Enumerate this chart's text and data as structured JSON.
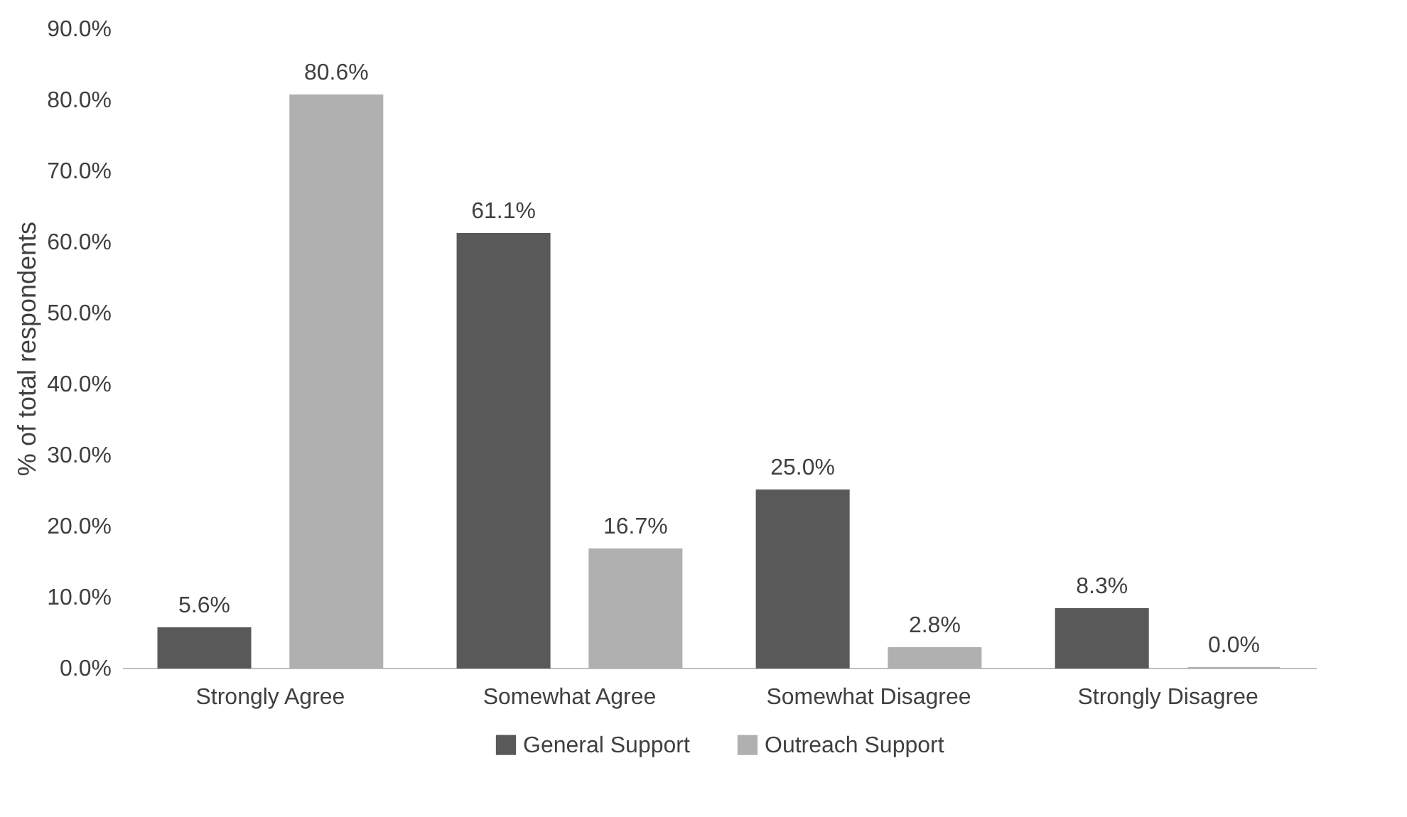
{
  "chart_data": {
    "type": "bar",
    "ylabel": "% of total respondents",
    "categories": [
      "Strongly Agree",
      "Somewhat Agree",
      "Somewhat Disagree",
      "Strongly Disagree"
    ],
    "series": [
      {
        "name": "General Support",
        "color": "#595959",
        "values": [
          5.6,
          61.1,
          25.0,
          8.3
        ],
        "value_labels": [
          "5.6%",
          "61.1%",
          "25.0%",
          "8.3%"
        ]
      },
      {
        "name": "Outreach Support",
        "color": "#b0b0b0",
        "values": [
          80.6,
          16.7,
          2.8,
          0.0
        ],
        "value_labels": [
          "80.6%",
          "16.7%",
          "2.8%",
          "0.0%"
        ]
      }
    ],
    "ylim": [
      0,
      90
    ],
    "yticks": [
      {
        "value": 0,
        "label": "0.0%"
      },
      {
        "value": 10,
        "label": "10.0%"
      },
      {
        "value": 20,
        "label": "20.0%"
      },
      {
        "value": 30,
        "label": "30.0%"
      },
      {
        "value": 40,
        "label": "40.0%"
      },
      {
        "value": 50,
        "label": "50.0%"
      },
      {
        "value": 60,
        "label": "60.0%"
      },
      {
        "value": 70,
        "label": "70.0%"
      },
      {
        "value": 80,
        "label": "80.0%"
      },
      {
        "value": 90,
        "label": "90.0%"
      }
    ],
    "grid": false,
    "legend": "bottom"
  }
}
